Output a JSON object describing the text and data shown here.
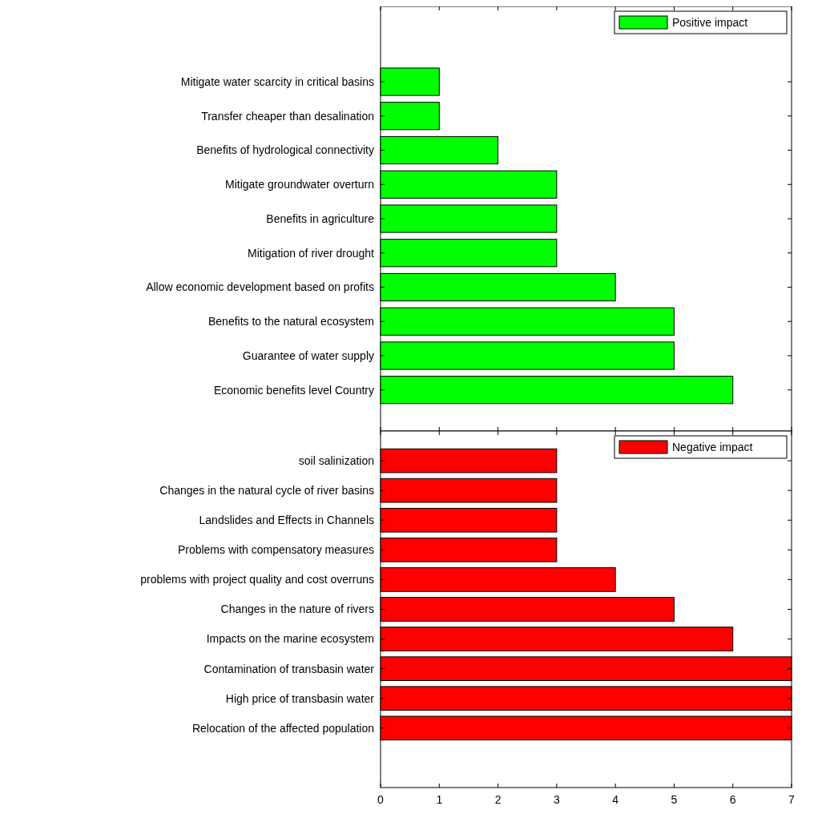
{
  "chart_data": [
    {
      "type": "bar",
      "orientation": "horizontal",
      "categories": [
        "Mitigate water scarcity in critical basins",
        "Transfer cheaper than desalination",
        "Benefits of hydrological connectivity",
        "Mitigate groundwater overturn",
        "Benefits in agriculture",
        "Mitigation of river drought",
        "Allow economic development based on profits",
        "Benefits to the natural ecosystem",
        "Guarantee of water supply",
        "Economic benefits level Country"
      ],
      "series": [
        {
          "name": "Positive impact",
          "color": "#00ff00",
          "values": [
            1,
            1,
            2,
            3,
            3,
            3,
            4,
            5,
            5,
            6
          ]
        }
      ],
      "xlim": [
        0,
        7
      ],
      "xticks": [
        0,
        1,
        2,
        3,
        4,
        5,
        6,
        7
      ],
      "tick_labels": "y",
      "legend": "top right"
    },
    {
      "type": "bar",
      "orientation": "horizontal",
      "categories": [
        "soil salinization",
        "Changes in the natural cycle of river basins",
        "Landslides and Effects in Channels",
        "Problems with compensatory measures",
        "problems with project quality and cost overruns",
        "Changes in the nature of rivers",
        "Impacts on the marine ecosystem",
        "Contamination of transbasin water",
        "High price of transbasin water",
        "Relocation of the affected population"
      ],
      "series": [
        {
          "name": "Negative impact",
          "color": "#ff0000",
          "values": [
            3,
            3,
            3,
            3,
            4,
            5,
            6,
            7,
            7,
            7
          ]
        }
      ],
      "xlim": [
        0,
        7
      ],
      "xticks": [
        0,
        1,
        2,
        3,
        4,
        5,
        6,
        7
      ],
      "legend": "top right"
    }
  ]
}
